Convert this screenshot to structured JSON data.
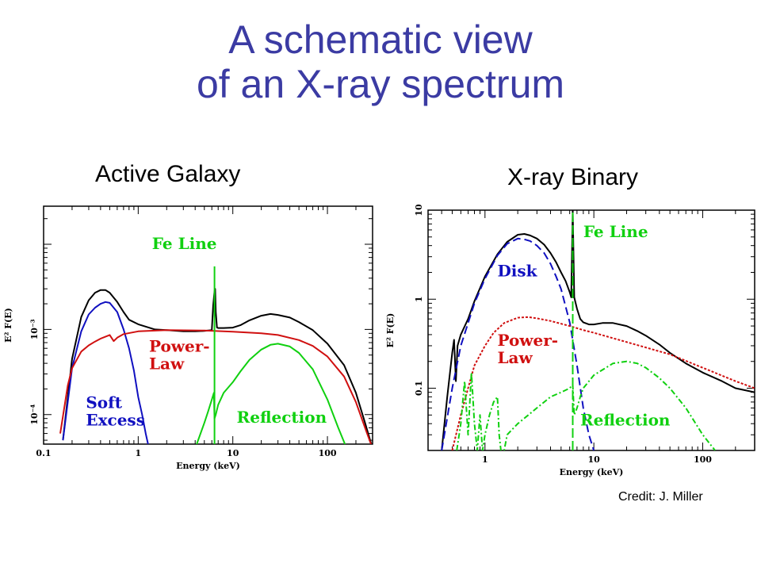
{
  "slide": {
    "title_line1": "A schematic view",
    "title_line2": "of an X-ray spectrum",
    "credit": "Credit: J. Miller"
  },
  "colors": {
    "title": "#3b3ba3",
    "total": "#000000",
    "soft_excess": "#1010c0",
    "disk": "#1010c0",
    "power_law": "#d01010",
    "reflection": "#10d010",
    "fe_line": "#10d010"
  },
  "chart_data": [
    {
      "panel_title": "Active Galaxy",
      "type": "line",
      "xlabel": "Energy (keV)",
      "ylabel": "E² F(E)",
      "xscale": "log",
      "yscale": "log",
      "xlim": [
        0.1,
        300
      ],
      "ylim": [
        4.5e-05,
        0.028
      ],
      "xticks": [
        {
          "v": 0.1,
          "label": "0.1"
        },
        {
          "v": 1,
          "label": "1"
        },
        {
          "v": 10,
          "label": "10"
        },
        {
          "v": 100,
          "label": "100"
        }
      ],
      "yticks": [
        {
          "v": 0.001,
          "label": "10⁻³"
        },
        {
          "v": 0.0001,
          "label": "10⁻⁴"
        }
      ],
      "annotations": [
        {
          "text": "Fe Line",
          "x": 1.4,
          "y": 0.0088,
          "color": "fe_line",
          "lines": [
            "Fe Line"
          ]
        },
        {
          "text": "Power- Law",
          "x": 1.3,
          "y": 0.00055,
          "color": "power_law",
          "lines": [
            "Power-",
            "Law"
          ]
        },
        {
          "text": "Soft Excess",
          "x": 0.28,
          "y": 0.00012,
          "color": "soft_excess",
          "lines": [
            "Soft",
            "Excess"
          ]
        },
        {
          "text": "Reflection",
          "x": 11,
          "y": 8e-05,
          "color": "reflection",
          "lines": [
            "Reflection"
          ]
        }
      ],
      "series": [
        {
          "name": "Total",
          "color": "total",
          "x": [
            0.16,
            0.2,
            0.25,
            0.3,
            0.35,
            0.4,
            0.45,
            0.5,
            0.6,
            0.7,
            0.8,
            1,
            1.5,
            2,
            3,
            4,
            5,
            6,
            6.2,
            6.4,
            6.5,
            6.6,
            6.8,
            7,
            8,
            10,
            12,
            15,
            20,
            25,
            30,
            40,
            50,
            70,
            100,
            150,
            200,
            250,
            300
          ],
          "y": [
            5e-05,
            0.00045,
            0.0014,
            0.0022,
            0.0027,
            0.0029,
            0.0029,
            0.0027,
            0.0021,
            0.0016,
            0.0013,
            0.00115,
            0.001,
            0.00098,
            0.00095,
            0.00095,
            0.00096,
            0.00098,
            0.0019,
            0.0028,
            0.003,
            0.0016,
            0.00105,
            0.00104,
            0.00104,
            0.00105,
            0.00112,
            0.00128,
            0.00145,
            0.00152,
            0.00148,
            0.00138,
            0.00122,
            0.00098,
            0.00068,
            0.00038,
            0.00018,
            8e-05,
            4e-05
          ]
        },
        {
          "name": "Soft Excess",
          "color": "soft_excess",
          "x": [
            0.16,
            0.2,
            0.25,
            0.3,
            0.35,
            0.4,
            0.45,
            0.5,
            0.6,
            0.7,
            0.8,
            0.9,
            1,
            1.1,
            1.2,
            1.3
          ],
          "y": [
            5e-05,
            0.00035,
            0.00095,
            0.0015,
            0.0018,
            0.002,
            0.0021,
            0.00205,
            0.0016,
            0.001,
            0.0006,
            0.00033,
            0.00016,
            0.0001,
            6e-05,
            4e-05
          ]
        },
        {
          "name": "Power-Law",
          "color": "power_law",
          "x": [
            0.15,
            0.18,
            0.2,
            0.25,
            0.3,
            0.35,
            0.4,
            0.5,
            0.55,
            0.6,
            0.7,
            1,
            2,
            5,
            10,
            20,
            30,
            50,
            70,
            100,
            150,
            200,
            250,
            300
          ],
          "y": [
            6e-05,
            0.00022,
            0.00035,
            0.00055,
            0.00065,
            0.00072,
            0.00078,
            0.00086,
            0.00073,
            0.0008,
            0.00088,
            0.00095,
            0.00098,
            0.00097,
            0.00094,
            0.0009,
            0.00086,
            0.00075,
            0.00064,
            0.00048,
            0.00028,
            0.00014,
            7e-05,
            4e-05
          ]
        },
        {
          "name": "Reflection",
          "color": "reflection",
          "x": [
            4,
            5,
            5.5,
            6,
            6.3,
            6.4,
            6.6,
            7,
            8,
            10,
            12,
            15,
            20,
            25,
            30,
            40,
            50,
            70,
            100,
            130,
            160
          ],
          "y": [
            4e-05,
            8e-05,
            0.00011,
            0.00015,
            0.00018,
            9e-05,
            0.0001,
            0.00013,
            0.00018,
            0.00024,
            0.00032,
            0.00044,
            0.00058,
            0.00066,
            0.00068,
            0.00063,
            0.00053,
            0.00034,
            0.00015,
            7e-05,
            4e-05
          ]
        },
        {
          "name": "Fe Line",
          "color": "fe_line",
          "x": [
            6.4,
            6.4
          ],
          "y": [
            4e-05,
            0.0055
          ]
        }
      ]
    },
    {
      "panel_title": "X-ray Binary",
      "type": "line",
      "xlabel": "Energy (keV)",
      "ylabel": "E² F(E)",
      "xscale": "log",
      "yscale": "log",
      "xlim": [
        0.3,
        300
      ],
      "ylim": [
        0.02,
        10
      ],
      "xticks": [
        {
          "v": 1,
          "label": "1"
        },
        {
          "v": 10,
          "label": "10"
        },
        {
          "v": 100,
          "label": "100"
        }
      ],
      "yticks": [
        {
          "v": 10,
          "label": "10"
        },
        {
          "v": 1,
          "label": "1"
        },
        {
          "v": 0.1,
          "label": "0.1"
        }
      ],
      "annotations": [
        {
          "text": "Fe Line",
          "x": 8,
          "y": 5.0,
          "color": "fe_line",
          "lines": [
            "Fe Line"
          ]
        },
        {
          "text": "Disk",
          "x": 1.3,
          "y": 1.8,
          "color": "disk",
          "lines": [
            "Disk"
          ]
        },
        {
          "text": "Power- Law",
          "x": 1.3,
          "y": 0.3,
          "color": "power_law",
          "lines": [
            "Power-",
            "Law"
          ]
        },
        {
          "text": "Reflection",
          "x": 7.5,
          "y": 0.038,
          "color": "reflection",
          "lines": [
            "Reflection"
          ]
        }
      ],
      "series": [
        {
          "name": "Total",
          "color": "total",
          "x": [
            0.4,
            0.45,
            0.5,
            0.52,
            0.54,
            0.56,
            0.6,
            0.7,
            0.8,
            1,
            1.3,
            1.6,
            2,
            2.3,
            2.6,
            3,
            3.5,
            4,
            4.5,
            5,
            5.5,
            6,
            6.2,
            6.4,
            6.6,
            7,
            7.5,
            8,
            9,
            10,
            12,
            15,
            20,
            25,
            30,
            40,
            50,
            70,
            100,
            150,
            200,
            300
          ],
          "y": [
            0.02,
            0.08,
            0.25,
            0.35,
            0.12,
            0.3,
            0.4,
            0.6,
            0.95,
            1.8,
            3.2,
            4.4,
            5.3,
            5.4,
            5.2,
            4.8,
            4.1,
            3.3,
            2.6,
            2.0,
            1.6,
            1.2,
            1.05,
            10,
            1.05,
            0.78,
            0.6,
            0.55,
            0.52,
            0.52,
            0.54,
            0.54,
            0.5,
            0.44,
            0.39,
            0.31,
            0.25,
            0.19,
            0.15,
            0.12,
            0.1,
            0.09
          ]
        },
        {
          "name": "Disk",
          "color": "disk",
          "x": [
            0.4,
            0.5,
            0.6,
            0.8,
            1,
            1.3,
            1.6,
            2,
            2.3,
            2.6,
            3,
            3.5,
            4,
            4.5,
            5,
            6,
            7,
            8,
            9,
            10
          ],
          "y": [
            0.02,
            0.1,
            0.3,
            0.9,
            1.7,
            3.1,
            4.2,
            4.8,
            4.7,
            4.5,
            4.0,
            3.3,
            2.5,
            1.8,
            1.3,
            0.55,
            0.18,
            0.06,
            0.03,
            0.02
          ]
        },
        {
          "name": "Power-Law",
          "color": "power_law",
          "x": [
            0.5,
            0.6,
            0.7,
            0.8,
            1,
            1.2,
            1.5,
            2,
            2.5,
            3,
            4,
            5,
            6,
            8,
            10,
            20,
            50,
            100,
            200,
            300
          ],
          "y": [
            0.02,
            0.05,
            0.1,
            0.18,
            0.3,
            0.42,
            0.54,
            0.62,
            0.63,
            0.61,
            0.57,
            0.53,
            0.5,
            0.45,
            0.42,
            0.33,
            0.24,
            0.17,
            0.12,
            0.1
          ]
        },
        {
          "name": "Reflection",
          "color": "reflection",
          "x": [
            0.55,
            0.6,
            0.65,
            0.7,
            0.75,
            0.8,
            0.85,
            0.9,
            0.95,
            1.0,
            1.1,
            1.2,
            1.3,
            1.35,
            1.4,
            1.5,
            1.6,
            1.8,
            2,
            2.5,
            3,
            4,
            5,
            6,
            6.4,
            6.6,
            7,
            7.5,
            8,
            10,
            15,
            20,
            25,
            30,
            40,
            50,
            70,
            100,
            130
          ],
          "y": [
            0.02,
            0.04,
            0.12,
            0.03,
            0.15,
            0.04,
            0.02,
            0.05,
            0.02,
            0.03,
            0.05,
            0.07,
            0.08,
            0.03,
            0.02,
            0.02,
            0.03,
            0.035,
            0.04,
            0.05,
            0.06,
            0.08,
            0.09,
            0.1,
            0.11,
            0.05,
            0.06,
            0.08,
            0.1,
            0.14,
            0.19,
            0.2,
            0.19,
            0.17,
            0.13,
            0.1,
            0.06,
            0.03,
            0.02
          ]
        },
        {
          "name": "Fe Line",
          "color": "fe_line",
          "x": [
            6.4,
            6.4
          ],
          "y": [
            0.02,
            10
          ]
        }
      ]
    }
  ]
}
